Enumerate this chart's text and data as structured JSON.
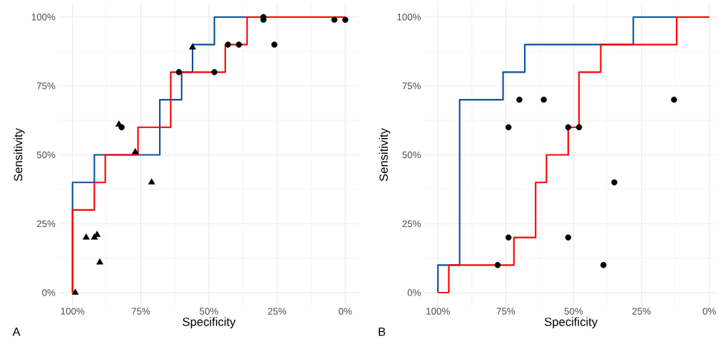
{
  "chart_data": [
    {
      "type": "line",
      "xlabel": "Specificity",
      "ylabel": "Sensitivity",
      "annotations": [
        "A"
      ],
      "grid": true,
      "xlim": [
        105,
        -5
      ],
      "ylim": [
        -5,
        105
      ],
      "xticks": [
        {
          "value": 100,
          "label": "100%"
        },
        {
          "value": 75,
          "label": "75%"
        },
        {
          "value": 50,
          "label": "50%"
        },
        {
          "value": 25,
          "label": "25%"
        },
        {
          "value": 0,
          "label": "0%"
        }
      ],
      "yticks": [
        {
          "value": 0,
          "label": "0%"
        },
        {
          "value": 25,
          "label": "25%"
        },
        {
          "value": 50,
          "label": "50%"
        },
        {
          "value": 75,
          "label": "75%"
        },
        {
          "value": 100,
          "label": "100%"
        }
      ],
      "series": [
        {
          "color": "#0b4f9c",
          "x": [
            100,
            100,
            92,
            92,
            68,
            68,
            60,
            60,
            56,
            56,
            48,
            48,
            0
          ],
          "values": [
            0,
            40,
            40,
            50,
            50,
            70,
            70,
            80,
            80,
            90,
            90,
            100,
            100
          ]
        },
        {
          "color": "#ff0000",
          "x": [
            100,
            100,
            92,
            92,
            88,
            88,
            76,
            76,
            64,
            64,
            44,
            44,
            36,
            36,
            0
          ],
          "values": [
            0,
            30,
            30,
            40,
            40,
            50,
            50,
            60,
            60,
            80,
            80,
            90,
            90,
            100,
            100
          ]
        },
        {
          "type": "scatter",
          "marker": "circle",
          "color": "#000000",
          "x": [
            30,
            30,
            4,
            0,
            43,
            39,
            26,
            61,
            48,
            82
          ],
          "values": [
            100,
            99,
            99,
            99,
            90,
            90,
            90,
            80,
            80,
            60
          ]
        },
        {
          "type": "scatter",
          "marker": "triangle",
          "color": "#000000",
          "x": [
            83,
            77,
            56,
            71,
            95,
            92,
            91,
            90,
            99
          ],
          "values": [
            61,
            51,
            89,
            40,
            20,
            20,
            21,
            11,
            0
          ]
        }
      ]
    },
    {
      "type": "line",
      "xlabel": "Specificity",
      "ylabel": "Sensitivity",
      "annotations": [
        "B"
      ],
      "grid": true,
      "xlim": [
        105,
        -3
      ],
      "ylim": [
        -5,
        105
      ],
      "xticks": [
        {
          "value": 100,
          "label": "100%"
        },
        {
          "value": 75,
          "label": "75%"
        },
        {
          "value": 50,
          "label": "50%"
        },
        {
          "value": 25,
          "label": "25%"
        },
        {
          "value": 0,
          "label": "0%"
        }
      ],
      "yticks": [
        {
          "value": 0,
          "label": "0%"
        },
        {
          "value": 25,
          "label": "25%"
        },
        {
          "value": 50,
          "label": "50%"
        },
        {
          "value": 75,
          "label": "75%"
        },
        {
          "value": 100,
          "label": "100%"
        }
      ],
      "series": [
        {
          "color": "#0b4f9c",
          "x": [
            100,
            100,
            92,
            92,
            76,
            76,
            68,
            68,
            28,
            28,
            0
          ],
          "values": [
            0,
            10,
            10,
            70,
            70,
            80,
            80,
            90,
            90,
            100,
            100
          ]
        },
        {
          "color": "#ff0000",
          "x": [
            100,
            96,
            96,
            72,
            72,
            64,
            64,
            60,
            60,
            52,
            52,
            48,
            48,
            40,
            40,
            12,
            12,
            0
          ],
          "values": [
            0,
            0,
            10,
            10,
            20,
            20,
            40,
            40,
            50,
            50,
            60,
            60,
            80,
            80,
            90,
            90,
            100,
            100
          ]
        },
        {
          "type": "scatter",
          "marker": "circle",
          "color": "#000000",
          "x": [
            78,
            74,
            52,
            39,
            35,
            70,
            61,
            13,
            74,
            52,
            48
          ],
          "values": [
            10,
            20,
            20,
            10,
            40,
            70,
            70,
            70,
            60,
            60,
            60
          ]
        }
      ]
    }
  ]
}
